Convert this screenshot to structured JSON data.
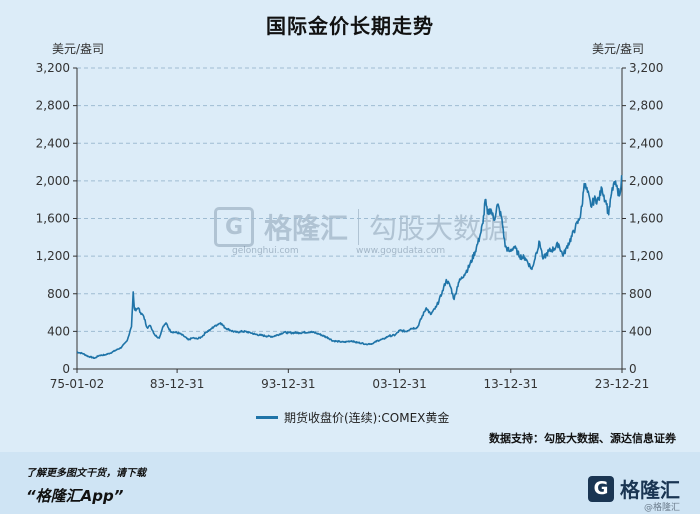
{
  "header": {
    "title": "国际金价长期走势",
    "unit_left": "美元/盎司",
    "unit_right": "美元/盎司"
  },
  "chart_data": {
    "type": "line",
    "title": "国际金价长期走势",
    "ylabel": "美元/盎司",
    "ylim": [
      0,
      3200
    ],
    "yticks": [
      0,
      400,
      800,
      1200,
      1600,
      2000,
      2400,
      2800,
      3200
    ],
    "ytick_labels": [
      "0",
      "400",
      "800",
      "1,200",
      "1,600",
      "2,000",
      "2,400",
      "2,800",
      "3,200"
    ],
    "xlim": [
      1975.0,
      2024.0
    ],
    "xticks": [
      1975.0,
      1984.0,
      1994.0,
      2004.0,
      2014.0,
      2024.0
    ],
    "xtick_labels": [
      "75-01-02",
      "83-12-31",
      "93-12-31",
      "03-12-31",
      "13-12-31",
      "23-12-21"
    ],
    "grid": true,
    "legend": "bottom",
    "series": [
      {
        "name": "期货收盘价(连续):COMEX黄金",
        "color": "#1f74a8",
        "x": [
          1975.0,
          1975.5,
          1976.0,
          1976.6,
          1977.0,
          1977.5,
          1978.0,
          1978.5,
          1979.0,
          1979.5,
          1979.9,
          1980.05,
          1980.15,
          1980.3,
          1980.5,
          1980.7,
          1981.0,
          1981.3,
          1981.6,
          1982.0,
          1982.4,
          1982.7,
          1983.0,
          1983.4,
          1983.8,
          1984.2,
          1984.6,
          1985.0,
          1985.4,
          1985.8,
          1986.2,
          1986.6,
          1987.0,
          1987.4,
          1987.9,
          1988.3,
          1988.8,
          1989.3,
          1989.9,
          1990.5,
          1991.0,
          1991.5,
          1992.0,
          1992.6,
          1993.2,
          1993.6,
          1994.0,
          1995.0,
          1996.0,
          1996.6,
          1997.0,
          1997.6,
          1998.0,
          1999.0,
          1999.7,
          2000.0,
          2000.6,
          2001.0,
          2001.6,
          2002.0,
          2002.6,
          2003.0,
          2003.6,
          2004.0,
          2004.6,
          2005.0,
          2005.6,
          2006.0,
          2006.4,
          2006.8,
          2007.3,
          2007.8,
          2008.2,
          2008.6,
          2008.9,
          2009.3,
          2009.8,
          2010.3,
          2010.8,
          2011.2,
          2011.5,
          2011.7,
          2011.9,
          2012.2,
          2012.5,
          2012.8,
          2013.2,
          2013.5,
          2013.9,
          2014.3,
          2014.8,
          2015.3,
          2015.9,
          2016.3,
          2016.6,
          2016.9,
          2017.4,
          2017.9,
          2018.3,
          2018.7,
          2019.0,
          2019.5,
          2019.8,
          2020.2,
          2020.4,
          2020.6,
          2020.9,
          2021.2,
          2021.5,
          2021.9,
          2022.2,
          2022.6,
          2022.8,
          2023.0,
          2023.3,
          2023.6,
          2023.8,
          2023.97
        ],
        "values": [
          180,
          165,
          135,
          115,
          145,
          150,
          170,
          200,
          230,
          300,
          450,
          820,
          650,
          620,
          650,
          600,
          560,
          440,
          460,
          360,
          330,
          440,
          490,
          400,
          390,
          380,
          350,
          310,
          330,
          320,
          340,
          390,
          420,
          460,
          490,
          440,
          410,
          390,
          400,
          390,
          370,
          360,
          350,
          345,
          370,
          390,
          385,
          385,
          395,
          380,
          360,
          330,
          300,
          285,
          300,
          285,
          275,
          265,
          270,
          300,
          320,
          350,
          360,
          410,
          400,
          430,
          440,
          550,
          650,
          580,
          660,
          800,
          950,
          870,
          740,
          920,
          1000,
          1100,
          1250,
          1400,
          1550,
          1800,
          1650,
          1700,
          1580,
          1750,
          1600,
          1300,
          1250,
          1300,
          1200,
          1180,
          1060,
          1240,
          1350,
          1170,
          1250,
          1280,
          1330,
          1200,
          1290,
          1410,
          1500,
          1600,
          1730,
          1970,
          1880,
          1730,
          1800,
          1800,
          1920,
          1750,
          1640,
          1830,
          1990,
          1900,
          1850,
          2060
        ]
      }
    ],
    "source": "数据支持：勾股大数据、源达信息证券"
  },
  "watermark": {
    "brand": "格隆汇",
    "brand_url": "gelonghui.com",
    "partner": "勾股大数据",
    "partner_url": "www.gogudata.com"
  },
  "footer": {
    "hint": "了解更多图文干货，请下载",
    "app": "“格隆汇App”",
    "logo_text": "格隆汇",
    "logo_glyph": "G",
    "small": "@格隆汇"
  }
}
